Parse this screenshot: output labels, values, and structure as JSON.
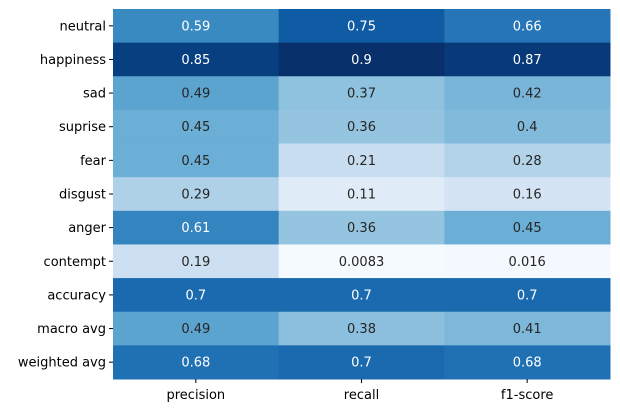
{
  "chart_data": {
    "type": "heatmap",
    "title": "",
    "xlabel": "",
    "ylabel": "",
    "colormap": "Blues",
    "colorbar": false,
    "color_range": [
      0,
      0.9
    ],
    "columns": [
      "precision",
      "recall",
      "f1-score"
    ],
    "rows": [
      "neutral",
      "happiness",
      "sad",
      "suprise",
      "fear",
      "disgust",
      "anger",
      "contempt",
      "accuracy",
      "macro avg",
      "weighted avg"
    ],
    "values": [
      [
        0.59,
        0.75,
        0.66
      ],
      [
        0.85,
        0.9,
        0.87
      ],
      [
        0.49,
        0.37,
        0.42
      ],
      [
        0.45,
        0.36,
        0.4
      ],
      [
        0.45,
        0.21,
        0.28
      ],
      [
        0.29,
        0.11,
        0.16
      ],
      [
        0.61,
        0.36,
        0.45
      ],
      [
        0.19,
        0.0083,
        0.016
      ],
      [
        0.7,
        0.7,
        0.7
      ],
      [
        0.49,
        0.38,
        0.41
      ],
      [
        0.68,
        0.7,
        0.68
      ]
    ],
    "value_labels": [
      [
        "0.59",
        "0.75",
        "0.66"
      ],
      [
        "0.85",
        "0.9",
        "0.87"
      ],
      [
        "0.49",
        "0.37",
        "0.42"
      ],
      [
        "0.45",
        "0.36",
        "0.4"
      ],
      [
        "0.45",
        "0.21",
        "0.28"
      ],
      [
        "0.29",
        "0.11",
        "0.16"
      ],
      [
        "0.61",
        "0.36",
        "0.45"
      ],
      [
        "0.19",
        "0.0083",
        "0.016"
      ],
      [
        "0.7",
        "0.7",
        "0.7"
      ],
      [
        "0.49",
        "0.38",
        "0.41"
      ],
      [
        "0.68",
        "0.7",
        "0.68"
      ]
    ]
  }
}
